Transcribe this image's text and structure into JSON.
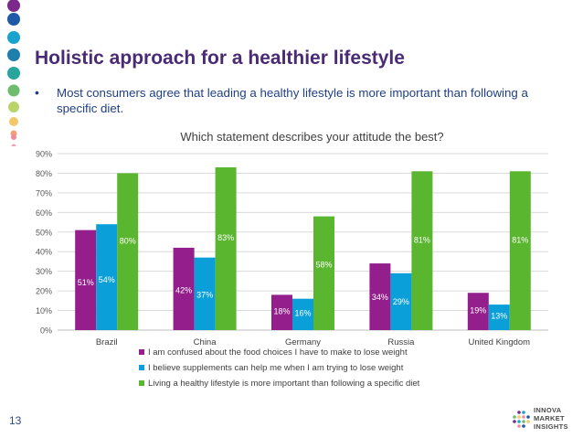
{
  "slide": {
    "title": "Holistic approach for a healthier lifestyle",
    "bullet": "Most consumers agree that leading a healthy lifestyle is more important than following a specific diet.",
    "page_number": "13",
    "logo_lines": [
      "INNOVA",
      "MARKET",
      "INSIGHTS"
    ],
    "decor_dot_colors": [
      "#7b2a8c",
      "#1e5aa8",
      "#1aa3cf",
      "#1e7fae",
      "#2aa59d",
      "#6ebd6e",
      "#b9d56a",
      "#f4c86a",
      "#f3a07a",
      "#ef8c9a",
      "#f2a2b4"
    ]
  },
  "chart_data": {
    "type": "bar",
    "title": "Which statement describes your attitude the best?",
    "categories": [
      "Brazil",
      "China",
      "Germany",
      "Russia",
      "United Kingdom"
    ],
    "series": [
      {
        "name": "I am confused about the food choices I have to make to lose weight",
        "color": "#931e8c",
        "values": [
          51,
          42,
          18,
          34,
          19
        ]
      },
      {
        "name": "I believe supplements can help me when I am trying to lose weight",
        "color": "#0a9fd8",
        "values": [
          54,
          37,
          16,
          29,
          13
        ]
      },
      {
        "name": "Living a healthy lifestyle is more important than following a specific diet",
        "color": "#5ab52f",
        "values": [
          80,
          83,
          58,
          81,
          81
        ]
      }
    ],
    "ylim": [
      0,
      90
    ],
    "yticks": [
      0,
      10,
      20,
      30,
      40,
      50,
      60,
      70,
      80,
      90
    ],
    "ytick_labels": [
      "0%",
      "10%",
      "20%",
      "30%",
      "40%",
      "50%",
      "60%",
      "70%",
      "80%",
      "90%"
    ],
    "data_labels": [
      [
        "51%",
        "42%",
        "18%",
        "34%",
        "19%"
      ],
      [
        "54%",
        "37%",
        "16%",
        "29%",
        "13%"
      ],
      [
        "80%",
        "83%",
        "58%",
        "81%",
        "81%"
      ]
    ],
    "legend_position": "bottom",
    "grid": true
  }
}
